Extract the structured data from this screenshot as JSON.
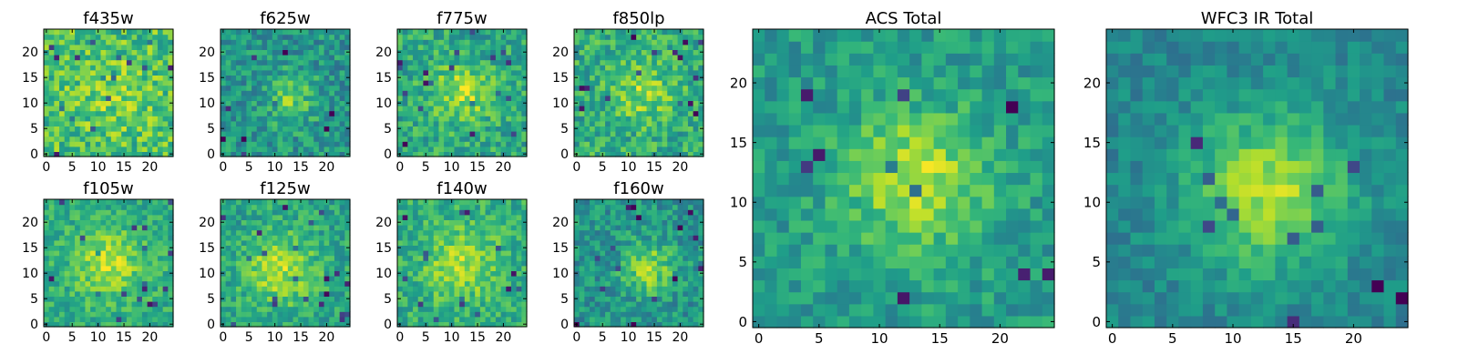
{
  "chart_data": [
    {
      "type": "heatmap",
      "title": "f435w",
      "xticks": [
        "0",
        "5",
        "10",
        "15",
        "20"
      ],
      "yticks": [
        "0",
        "5",
        "10",
        "15",
        "20"
      ],
      "xlim": [
        0,
        24
      ],
      "ylim": [
        0,
        24
      ],
      "grid": false,
      "colormap": "viridis",
      "peak_center": [
        13,
        12
      ],
      "spread": 5.0,
      "amplitude": 0.12,
      "base": 0.7,
      "noise": 0.2
    },
    {
      "type": "heatmap",
      "title": "f625w",
      "xticks": [
        "0",
        "5",
        "10",
        "15",
        "20"
      ],
      "yticks": [
        "0",
        "5",
        "10",
        "15",
        "20"
      ],
      "xlim": [
        0,
        24
      ],
      "ylim": [
        0,
        24
      ],
      "grid": false,
      "colormap": "viridis",
      "peak_center": [
        13,
        11
      ],
      "spread": 3.5,
      "amplitude": 0.25,
      "base": 0.52,
      "noise": 0.17
    },
    {
      "type": "heatmap",
      "title": "f775w",
      "xticks": [
        "0",
        "5",
        "10",
        "15",
        "20"
      ],
      "yticks": [
        "0",
        "5",
        "10",
        "15",
        "20"
      ],
      "xlim": [
        0,
        24
      ],
      "ylim": [
        0,
        24
      ],
      "grid": false,
      "colormap": "viridis",
      "peak_center": [
        12,
        12
      ],
      "spread": 4.0,
      "amplitude": 0.28,
      "base": 0.6,
      "noise": 0.17
    },
    {
      "type": "heatmap",
      "title": "f850lp",
      "xticks": [
        "0",
        "5",
        "10",
        "15",
        "20"
      ],
      "yticks": [
        "0",
        "5",
        "10",
        "15",
        "20"
      ],
      "xlim": [
        0,
        24
      ],
      "ylim": [
        0,
        24
      ],
      "grid": false,
      "colormap": "viridis",
      "peak_center": [
        13,
        12
      ],
      "spread": 4.0,
      "amplitude": 0.22,
      "base": 0.62,
      "noise": 0.18
    },
    {
      "type": "heatmap",
      "title": "f105w",
      "xticks": [
        "0",
        "5",
        "10",
        "15",
        "20"
      ],
      "yticks": [
        "0",
        "5",
        "10",
        "15",
        "20"
      ],
      "xlim": [
        0,
        24
      ],
      "ylim": [
        0,
        24
      ],
      "grid": false,
      "colormap": "viridis",
      "peak_center": [
        12,
        12
      ],
      "spread": 4.5,
      "amplitude": 0.28,
      "base": 0.62,
      "noise": 0.14
    },
    {
      "type": "heatmap",
      "title": "f125w",
      "xticks": [
        "0",
        "5",
        "10",
        "15",
        "20"
      ],
      "yticks": [
        "0",
        "5",
        "10",
        "15",
        "20"
      ],
      "xlim": [
        0,
        24
      ],
      "ylim": [
        0,
        24
      ],
      "grid": false,
      "colormap": "viridis",
      "peak_center": [
        11,
        11
      ],
      "spread": 5.0,
      "amplitude": 0.3,
      "base": 0.58,
      "noise": 0.15
    },
    {
      "type": "heatmap",
      "title": "f140w",
      "xticks": [
        "0",
        "5",
        "10",
        "15",
        "20"
      ],
      "yticks": [
        "0",
        "5",
        "10",
        "15",
        "20"
      ],
      "xlim": [
        0,
        24
      ],
      "ylim": [
        0,
        24
      ],
      "grid": false,
      "colormap": "viridis",
      "peak_center": [
        12,
        12
      ],
      "spread": 5.0,
      "amplitude": 0.25,
      "base": 0.62,
      "noise": 0.15
    },
    {
      "type": "heatmap",
      "title": "f160w",
      "xticks": [
        "0",
        "5",
        "10",
        "15",
        "20"
      ],
      "yticks": [
        "0",
        "5",
        "10",
        "15",
        "20"
      ],
      "xlim": [
        0,
        24
      ],
      "ylim": [
        0,
        24
      ],
      "grid": false,
      "colormap": "viridis",
      "peak_center": [
        14,
        11
      ],
      "spread": 3.5,
      "amplitude": 0.32,
      "base": 0.52,
      "noise": 0.16
    },
    {
      "type": "heatmap",
      "title": "ACS Total",
      "xticks": [
        "0",
        "5",
        "10",
        "15",
        "20"
      ],
      "yticks": [
        "0",
        "5",
        "10",
        "15",
        "20"
      ],
      "xlim": [
        0,
        24
      ],
      "ylim": [
        0,
        24
      ],
      "grid": false,
      "colormap": "viridis",
      "peak_center": [
        13,
        12
      ],
      "spread": 4.0,
      "amplitude": 0.35,
      "base": 0.55,
      "noise": 0.13
    },
    {
      "type": "heatmap",
      "title": "WFC3 IR Total",
      "xticks": [
        "0",
        "5",
        "10",
        "15",
        "20"
      ],
      "yticks": [
        "0",
        "5",
        "10",
        "15",
        "20"
      ],
      "xlim": [
        0,
        24
      ],
      "ylim": [
        0,
        24
      ],
      "grid": false,
      "colormap": "viridis",
      "peak_center": [
        13,
        11
      ],
      "spread": 4.5,
      "amplitude": 0.42,
      "base": 0.46,
      "noise": 0.1
    }
  ]
}
